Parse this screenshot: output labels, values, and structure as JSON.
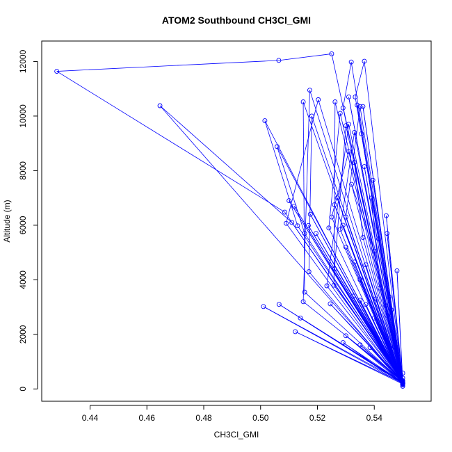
{
  "chart_data": {
    "type": "scatter",
    "title": "ATOM2 Southbound CH3Cl_GMI",
    "xlabel": "CH3Cl_GMI",
    "ylabel": "Altitude (m)",
    "xlim": [
      0.423,
      0.56
    ],
    "ylim": [
      -450,
      12750
    ],
    "x_ticks": [
      "0.44",
      "0.46",
      "0.48",
      "0.50",
      "0.52",
      "0.54"
    ],
    "x_tick_values": [
      0.44,
      0.46,
      0.48,
      0.5,
      0.52,
      0.54
    ],
    "y_ticks": [
      "0",
      "2000",
      "4000",
      "6000",
      "8000",
      "10000",
      "12000"
    ],
    "y_tick_values": [
      0,
      2000,
      4000,
      6000,
      8000,
      10000,
      12000
    ],
    "grid": false,
    "legend": "none",
    "series_color": "#0000ff",
    "series": [
      {
        "style": "overplotted line and points",
        "points": [
          [
            0.55,
            150
          ],
          [
            0.548,
            4330
          ],
          [
            0.55,
            300
          ],
          [
            0.5442,
            6350
          ],
          [
            0.55,
            200
          ],
          [
            0.5395,
            7650
          ],
          [
            0.55,
            250
          ],
          [
            0.5365,
            8150
          ],
          [
            0.55,
            180
          ],
          [
            0.5355,
            9350
          ],
          [
            0.55,
            230
          ],
          [
            0.534,
            10400
          ],
          [
            0.55,
            180
          ],
          [
            0.5365,
            12010
          ],
          [
            0.5333,
            10700
          ],
          [
            0.55,
            260
          ],
          [
            0.5319,
            11980
          ],
          [
            0.529,
            10300
          ],
          [
            0.55,
            200
          ],
          [
            0.525,
            12280
          ],
          [
            0.5064,
            12040
          ],
          [
            0.4283,
            11640
          ],
          [
            0.5085,
            6480
          ],
          [
            0.55,
            250
          ],
          [
            0.4646,
            10380
          ],
          [
            0.511,
            6100
          ],
          [
            0.55,
            200
          ],
          [
            0.5015,
            9830
          ],
          [
            0.513,
            5980
          ],
          [
            0.55,
            280
          ],
          [
            0.5058,
            8880
          ],
          [
            0.5155,
            5700
          ],
          [
            0.55,
            220
          ],
          [
            0.5173,
            10950
          ],
          [
            0.515,
            3200
          ],
          [
            0.55,
            300
          ],
          [
            0.5203,
            10600
          ],
          [
            0.509,
            6070
          ],
          [
            0.55,
            180
          ],
          [
            0.515,
            10520
          ],
          [
            0.5155,
            3550
          ],
          [
            0.55,
            250
          ],
          [
            0.518,
            10000
          ],
          [
            0.517,
            4300
          ],
          [
            0.55,
            200
          ],
          [
            0.5262,
            10520
          ],
          [
            0.5258,
            3800
          ],
          [
            0.55,
            300
          ],
          [
            0.528,
            10100
          ],
          [
            0.524,
            5900
          ],
          [
            0.55,
            200
          ],
          [
            0.53,
            9650
          ],
          [
            0.526,
            4400
          ],
          [
            0.55,
            250
          ],
          [
            0.531,
            9700
          ],
          [
            0.5233,
            3780
          ],
          [
            0.55,
            220
          ],
          [
            0.533,
            9400
          ],
          [
            0.528,
            5850
          ],
          [
            0.55,
            200
          ],
          [
            0.535,
            10350
          ],
          [
            0.53,
            6300
          ],
          [
            0.55,
            250
          ],
          [
            0.533,
            8300
          ],
          [
            0.536,
            5550
          ],
          [
            0.55,
            200
          ],
          [
            0.539,
            7000
          ],
          [
            0.542,
            3700
          ],
          [
            0.55,
            300
          ],
          [
            0.531,
            8700
          ],
          [
            0.525,
            6300
          ],
          [
            0.55,
            200
          ],
          [
            0.532,
            7500
          ],
          [
            0.54,
            5050
          ],
          [
            0.55,
            250
          ],
          [
            0.501,
            3020
          ],
          [
            0.55,
            200
          ],
          [
            0.5065,
            3100
          ],
          [
            0.55,
            250
          ],
          [
            0.514,
            2600
          ],
          [
            0.55,
            220
          ],
          [
            0.5122,
            2100
          ],
          [
            0.55,
            180
          ],
          [
            0.529,
            1700
          ],
          [
            0.55,
            250
          ],
          [
            0.535,
            1620
          ],
          [
            0.55,
            200
          ],
          [
            0.5385,
            1520
          ],
          [
            0.55,
            260
          ],
          [
            0.53,
            1950
          ],
          [
            0.55,
            200
          ],
          [
            0.5458,
            1330
          ],
          [
            0.55,
            250
          ],
          [
            0.5445,
            2700
          ],
          [
            0.55,
            200
          ],
          [
            0.5453,
            3370
          ],
          [
            0.55,
            250
          ],
          [
            0.5405,
            3300
          ],
          [
            0.55,
            220
          ],
          [
            0.535,
            3250
          ],
          [
            0.55,
            200
          ],
          [
            0.5325,
            3400
          ],
          [
            0.55,
            250
          ],
          [
            0.5245,
            3120
          ],
          [
            0.55,
            300
          ],
          [
            0.5195,
            5700
          ],
          [
            0.55,
            200
          ],
          [
            0.5175,
            6400
          ],
          [
            0.55,
            250
          ],
          [
            0.5118,
            6700
          ],
          [
            0.55,
            200
          ],
          [
            0.51,
            6900
          ],
          [
            0.55,
            250
          ],
          [
            0.5168,
            5990
          ],
          [
            0.55,
            220
          ],
          [
            0.5415,
            5500
          ],
          [
            0.55,
            200
          ],
          [
            0.5445,
            5700
          ],
          [
            0.55,
            250
          ],
          [
            0.544,
            3050
          ],
          [
            0.55,
            200
          ],
          [
            0.537,
            4550
          ],
          [
            0.55,
            250
          ],
          [
            0.533,
            4650
          ],
          [
            0.55,
            200
          ],
          [
            0.546,
            2900
          ],
          [
            0.55,
            250
          ],
          [
            0.535,
            4000
          ],
          [
            0.55,
            200
          ],
          [
            0.529,
            6000
          ],
          [
            0.55,
            250
          ],
          [
            0.527,
            7000
          ],
          [
            0.55,
            200
          ],
          [
            0.536,
            10350
          ],
          [
            0.55,
            250
          ],
          [
            0.53,
            5200
          ],
          [
            0.55,
            200
          ],
          [
            0.526,
            6750
          ],
          [
            0.55,
            250
          ],
          [
            0.537,
            3100
          ],
          [
            0.55,
            200
          ],
          [
            0.547,
            1550
          ],
          [
            0.55,
            400
          ],
          [
            0.54,
            2600
          ],
          [
            0.55,
            200
          ],
          [
            0.531,
            10700
          ],
          [
            0.55,
            100
          ],
          [
            0.55,
            580
          ]
        ]
      }
    ]
  }
}
